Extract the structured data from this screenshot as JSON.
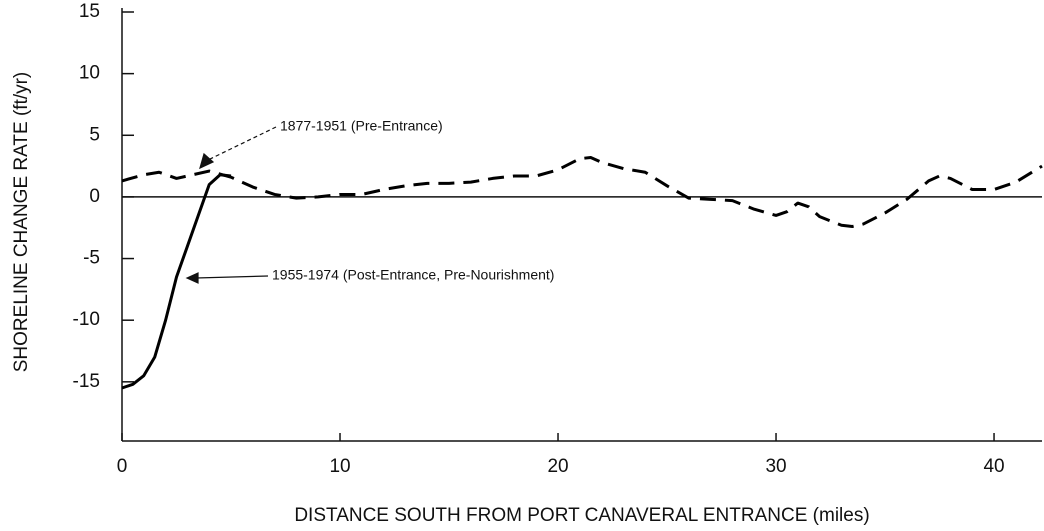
{
  "chart_data": {
    "type": "line",
    "xlabel": "DISTANCE SOUTH FROM PORT CANAVERAL ENTRANCE (miles)",
    "ylabel": "SHORELINE CHANGE RATE (ft/yr)",
    "xlim": [
      0,
      42.2
    ],
    "xticks": [
      0,
      10,
      20,
      30,
      40
    ],
    "ylim": [
      -19.8,
      15
    ],
    "yticks": [
      15,
      10,
      5,
      0,
      -5,
      -10,
      -15
    ],
    "zero_line": true,
    "series": [
      {
        "name": "1877-1951 (Pre-Entrance)",
        "color": "#000000",
        "dash": true,
        "x": [
          0,
          1,
          1.7,
          2.5,
          3,
          4,
          5,
          6,
          7,
          8,
          9,
          10,
          11,
          12,
          13,
          14,
          15,
          16,
          17,
          18,
          19,
          20,
          21,
          21.5,
          22,
          23,
          24,
          25,
          26,
          27,
          28,
          29,
          30,
          30.5,
          31,
          31.5,
          32,
          33,
          33.5,
          34,
          35,
          36,
          37,
          37.5,
          38,
          39,
          40,
          41,
          42.2
        ],
        "values": [
          1.3,
          1.8,
          2.0,
          1.5,
          1.7,
          2.1,
          1.6,
          0.8,
          0.2,
          -0.1,
          0,
          0.2,
          0.2,
          0.6,
          0.9,
          1.1,
          1.1,
          1.2,
          1.5,
          1.7,
          1.7,
          2.2,
          3.1,
          3.2,
          2.8,
          2.3,
          2.0,
          0.9,
          -0.1,
          -0.2,
          -0.3,
          -1.0,
          -1.5,
          -1.2,
          -0.5,
          -0.8,
          -1.6,
          -2.3,
          -2.4,
          -2.2,
          -1.3,
          -0.2,
          1.3,
          1.7,
          1.5,
          0.6,
          0.6,
          1.2,
          2.5
        ]
      },
      {
        "name": "1955-1974 (Post-Entrance, Pre-Nourishment)",
        "color": "#000000",
        "dash": false,
        "x": [
          0,
          0.5,
          1,
          1.5,
          2,
          2.5,
          3,
          3.5,
          4,
          4.5,
          5
        ],
        "values": [
          -15.5,
          -15.2,
          -14.5,
          -13,
          -10,
          -6.5,
          -4,
          -1.5,
          1.0,
          1.8,
          1.7
        ]
      }
    ]
  }
}
